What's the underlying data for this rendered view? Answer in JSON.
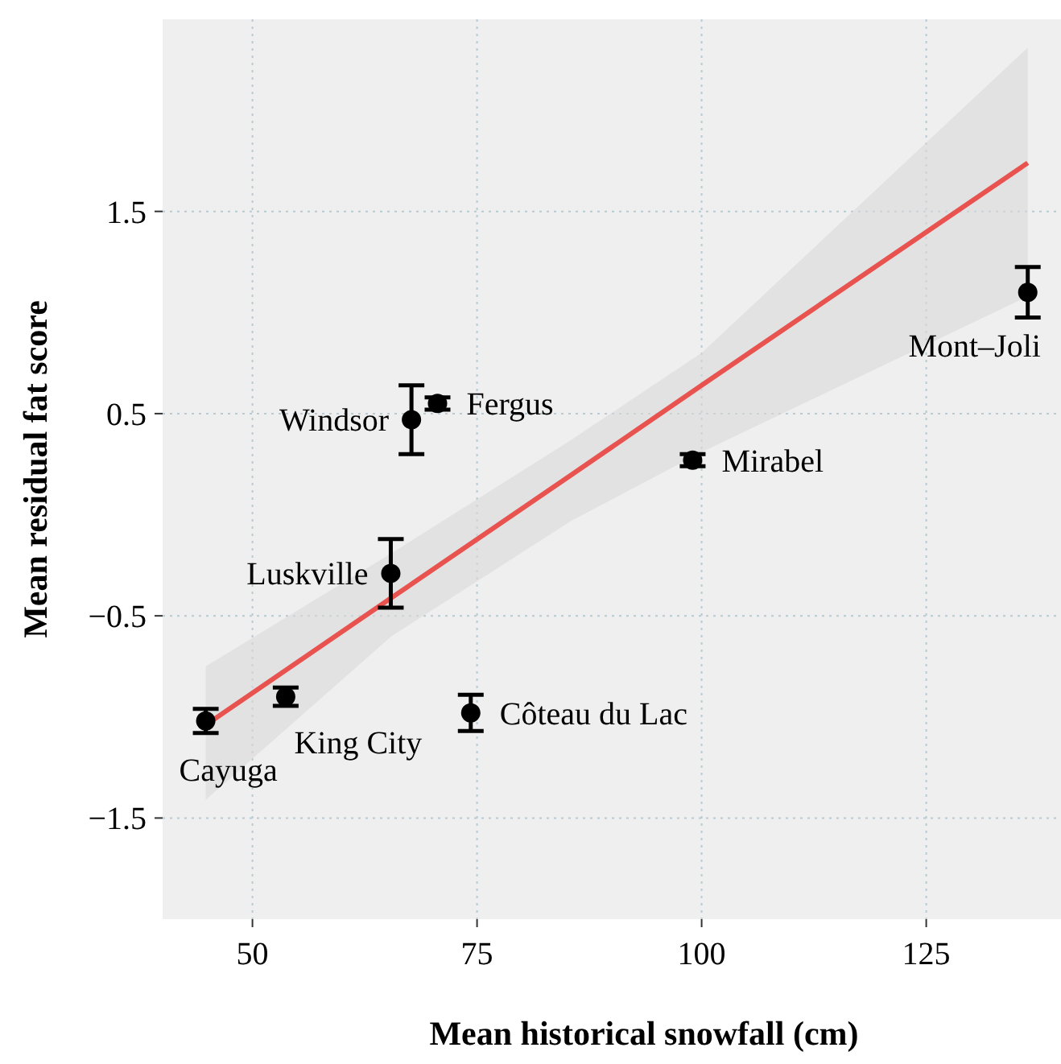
{
  "chart_data": {
    "type": "scatter",
    "xlabel": "Mean historical snowfall (cm)",
    "ylabel": "Mean residual fat score",
    "xlim": [
      40,
      140
    ],
    "ylim": [
      -2,
      2.45
    ],
    "xticks": [
      50,
      75,
      100,
      125
    ],
    "yticks": [
      -1.5,
      -0.5,
      0.5,
      1.5
    ],
    "grid": true,
    "series": [
      {
        "marker": "circle",
        "color": "#000000",
        "x": [
          44.8,
          53.7,
          65.4,
          67.7,
          70.6,
          74.3,
          99,
          136.3
        ],
        "values": [
          -1.02,
          -0.9,
          -0.29,
          0.47,
          0.55,
          -0.98,
          0.27,
          1.1
        ],
        "errors": [
          0.06,
          0.045,
          0.17,
          0.17,
          0.03,
          0.09,
          0.03,
          0.125
        ]
      },
      {
        "type": "line",
        "color": "#e8524f",
        "x": [
          44.8,
          65.5,
          85.5,
          100,
          136.3
        ],
        "values": [
          -1.04,
          -0.41,
          0.197,
          0.64,
          1.74
        ],
        "lower": [
          -1.41,
          -0.6,
          -0.03,
          0.31,
          1.08
        ],
        "upper": [
          -0.75,
          -0.19,
          0.37,
          0.8,
          2.31
        ]
      }
    ],
    "annotations": [
      {
        "text": "Cayuga",
        "x": 44.8,
        "y": -1.02
      },
      {
        "text": "King City",
        "x": 53.7,
        "y": -0.9
      },
      {
        "text": "Luskville",
        "x": 65.4,
        "y": -0.29
      },
      {
        "text": "Windsor",
        "x": 67.7,
        "y": 0.47
      },
      {
        "text": "Fergus",
        "x": 70.6,
        "y": 0.55
      },
      {
        "text": "Côteau du Lac",
        "x": 74.3,
        "y": -0.98
      },
      {
        "text": "Mirabel",
        "x": 99,
        "y": 0.27
      },
      {
        "text": "Mont–Joli",
        "x": 136.3,
        "y": 1.1
      }
    ]
  }
}
